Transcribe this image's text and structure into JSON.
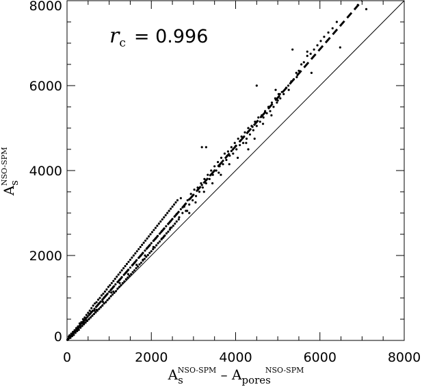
{
  "chart_data": {
    "type": "scatter",
    "title": "",
    "xlim": [
      0,
      8000
    ],
    "ylim": [
      0,
      8000
    ],
    "x_ticks": [
      0,
      2000,
      4000,
      6000,
      8000
    ],
    "y_ticks": [
      0,
      2000,
      4000,
      6000,
      8000
    ],
    "xlabel": {
      "parts": [
        {
          "text": "A",
          "style": "normal"
        },
        {
          "text": "s",
          "style": "sub"
        },
        {
          "text": "NSO-SPM",
          "style": "sup"
        },
        {
          "text": " – ",
          "style": "normal"
        },
        {
          "text": "A",
          "style": "normal"
        },
        {
          "text": "pores",
          "style": "sub"
        },
        {
          "text": "NSO-SPM",
          "style": "sup"
        }
      ]
    },
    "ylabel": {
      "parts": [
        {
          "text": "A",
          "style": "normal"
        },
        {
          "text": "s",
          "style": "sub"
        },
        {
          "text": "NSO-SPM",
          "style": "sup"
        }
      ]
    },
    "annotation": {
      "symbol": "r",
      "subscript": "c",
      "text": "= 0.996"
    },
    "reference_line": {
      "style": "solid",
      "x": [
        0,
        8000
      ],
      "y": [
        0,
        8000
      ]
    },
    "fit_line": {
      "style": "dashed",
      "x": [
        0,
        7000
      ],
      "y": [
        0,
        8000
      ]
    },
    "points": [
      [
        20,
        30
      ],
      [
        35,
        45
      ],
      [
        50,
        60
      ],
      [
        70,
        85
      ],
      [
        90,
        105
      ],
      [
        110,
        130
      ],
      [
        130,
        150
      ],
      [
        150,
        175
      ],
      [
        170,
        200
      ],
      [
        190,
        220
      ],
      [
        210,
        245
      ],
      [
        230,
        270
      ],
      [
        250,
        290
      ],
      [
        270,
        310
      ],
      [
        300,
        345
      ],
      [
        320,
        370
      ],
      [
        350,
        405
      ],
      [
        380,
        440
      ],
      [
        400,
        460
      ],
      [
        430,
        495
      ],
      [
        460,
        530
      ],
      [
        490,
        560
      ],
      [
        520,
        600
      ],
      [
        550,
        630
      ],
      [
        580,
        670
      ],
      [
        610,
        700
      ],
      [
        650,
        745
      ],
      [
        690,
        790
      ],
      [
        720,
        825
      ],
      [
        760,
        870
      ],
      [
        800,
        915
      ],
      [
        840,
        960
      ],
      [
        880,
        1010
      ],
      [
        920,
        1055
      ],
      [
        960,
        1100
      ],
      [
        1000,
        1145
      ],
      [
        1050,
        1200
      ],
      [
        1100,
        1260
      ],
      [
        1150,
        1320
      ],
      [
        1200,
        1375
      ],
      [
        1250,
        1430
      ],
      [
        1300,
        1490
      ],
      [
        1350,
        1545
      ],
      [
        1400,
        1600
      ],
      [
        1450,
        1660
      ],
      [
        1500,
        1715
      ],
      [
        1550,
        1775
      ],
      [
        1600,
        1830
      ],
      [
        1650,
        1890
      ],
      [
        1700,
        1945
      ],
      [
        1750,
        2000
      ],
      [
        1800,
        2060
      ],
      [
        1850,
        2115
      ],
      [
        1900,
        2175
      ],
      [
        1950,
        2230
      ],
      [
        2000,
        2290
      ],
      [
        2050,
        2345
      ],
      [
        2100,
        2400
      ],
      [
        2150,
        2460
      ],
      [
        2200,
        2515
      ],
      [
        2250,
        2575
      ],
      [
        2300,
        2630
      ],
      [
        2350,
        2690
      ],
      [
        2400,
        2745
      ],
      [
        2450,
        2800
      ],
      [
        2500,
        2860
      ],
      [
        2550,
        2915
      ],
      [
        2600,
        2975
      ],
      [
        2700,
        3090
      ],
      [
        2800,
        3200
      ],
      [
        2900,
        3320
      ],
      [
        3000,
        3430
      ],
      [
        3100,
        3545
      ],
      [
        3200,
        3660
      ],
      [
        3300,
        3775
      ],
      [
        3400,
        3890
      ],
      [
        3500,
        4000
      ],
      [
        3600,
        4120
      ],
      [
        3700,
        4230
      ],
      [
        3800,
        4350
      ],
      [
        3900,
        4460
      ],
      [
        4000,
        4575
      ],
      [
        4100,
        4690
      ],
      [
        4200,
        4800
      ],
      [
        4300,
        4920
      ],
      [
        4400,
        5030
      ],
      [
        4500,
        5150
      ],
      [
        4600,
        5260
      ],
      [
        4700,
        5375
      ],
      [
        4800,
        5490
      ],
      [
        40,
        90
      ],
      [
        60,
        120
      ],
      [
        80,
        60
      ],
      [
        100,
        160
      ],
      [
        120,
        100
      ],
      [
        140,
        200
      ],
      [
        160,
        130
      ],
      [
        180,
        240
      ],
      [
        200,
        180
      ],
      [
        220,
        290
      ],
      [
        240,
        220
      ],
      [
        260,
        330
      ],
      [
        280,
        250
      ],
      [
        300,
        400
      ],
      [
        320,
        300
      ],
      [
        340,
        430
      ],
      [
        360,
        340
      ],
      [
        380,
        500
      ],
      [
        400,
        380
      ],
      [
        420,
        540
      ],
      [
        440,
        420
      ],
      [
        460,
        600
      ],
      [
        480,
        460
      ],
      [
        500,
        650
      ],
      [
        520,
        500
      ],
      [
        540,
        700
      ],
      [
        560,
        540
      ],
      [
        580,
        760
      ],
      [
        600,
        580
      ],
      [
        620,
        820
      ],
      [
        640,
        620
      ],
      [
        660,
        870
      ],
      [
        680,
        660
      ],
      [
        700,
        900
      ],
      [
        720,
        700
      ],
      [
        740,
        960
      ],
      [
        760,
        740
      ],
      [
        780,
        1000
      ],
      [
        800,
        780
      ],
      [
        820,
        1060
      ],
      [
        840,
        820
      ],
      [
        860,
        1100
      ],
      [
        880,
        870
      ],
      [
        900,
        1150
      ],
      [
        920,
        900
      ],
      [
        940,
        1200
      ],
      [
        960,
        950
      ],
      [
        980,
        1260
      ],
      [
        1000,
        990
      ],
      [
        1020,
        1300
      ],
      [
        1040,
        1040
      ],
      [
        1060,
        1350
      ],
      [
        1080,
        1080
      ],
      [
        1100,
        1400
      ],
      [
        1120,
        1120
      ],
      [
        1140,
        1450
      ],
      [
        1160,
        1160
      ],
      [
        1180,
        1500
      ],
      [
        1200,
        1220
      ],
      [
        1220,
        1550
      ],
      [
        1240,
        1260
      ],
      [
        1260,
        1600
      ],
      [
        1280,
        1300
      ],
      [
        1300,
        1650
      ],
      [
        1320,
        1350
      ],
      [
        1340,
        1700
      ],
      [
        1360,
        1390
      ],
      [
        1380,
        1750
      ],
      [
        1400,
        1440
      ],
      [
        1420,
        1800
      ],
      [
        1440,
        1480
      ],
      [
        1460,
        1850
      ],
      [
        1480,
        1520
      ],
      [
        1500,
        1900
      ],
      [
        1520,
        1560
      ],
      [
        1540,
        1950
      ],
      [
        1560,
        1610
      ],
      [
        1580,
        2000
      ],
      [
        1600,
        1650
      ],
      [
        1620,
        2050
      ],
      [
        1640,
        1700
      ],
      [
        1660,
        2100
      ],
      [
        1680,
        1740
      ],
      [
        1700,
        2150
      ],
      [
        1720,
        1790
      ],
      [
        1740,
        2200
      ],
      [
        1760,
        1830
      ],
      [
        1780,
        2250
      ],
      [
        1800,
        1880
      ],
      [
        1820,
        2300
      ],
      [
        1840,
        1920
      ],
      [
        1860,
        2350
      ],
      [
        1880,
        1970
      ],
      [
        1900,
        2400
      ],
      [
        1920,
        2010
      ],
      [
        1940,
        2450
      ],
      [
        1960,
        2060
      ],
      [
        1980,
        2500
      ],
      [
        2000,
        2100
      ],
      [
        2020,
        2550
      ],
      [
        2040,
        2150
      ],
      [
        2060,
        2600
      ],
      [
        2080,
        2190
      ],
      [
        2100,
        2650
      ],
      [
        2120,
        2240
      ],
      [
        2140,
        2700
      ],
      [
        2160,
        2290
      ],
      [
        2180,
        2750
      ],
      [
        2200,
        2330
      ],
      [
        2220,
        2800
      ],
      [
        2240,
        2380
      ],
      [
        2260,
        2850
      ],
      [
        2280,
        2420
      ],
      [
        2300,
        2900
      ],
      [
        2320,
        2470
      ],
      [
        2340,
        2950
      ],
      [
        2360,
        2520
      ],
      [
        2380,
        3000
      ],
      [
        2400,
        2560
      ],
      [
        2420,
        3050
      ],
      [
        2440,
        2610
      ],
      [
        2460,
        3100
      ],
      [
        2480,
        2660
      ],
      [
        2500,
        3150
      ],
      [
        2520,
        2700
      ],
      [
        2540,
        3200
      ],
      [
        2560,
        2750
      ],
      [
        2580,
        3250
      ],
      [
        2600,
        2800
      ],
      [
        2620,
        3300
      ],
      [
        2660,
        2900
      ],
      [
        2700,
        3350
      ],
      [
        2740,
        3000
      ],
      [
        2780,
        3150
      ],
      [
        2820,
        3050
      ],
      [
        2860,
        3300
      ],
      [
        2900,
        3200
      ],
      [
        2940,
        3450
      ],
      [
        2980,
        3300
      ],
      [
        3020,
        3550
      ],
      [
        3060,
        3400
      ],
      [
        3100,
        3600
      ],
      [
        3140,
        3500
      ],
      [
        3180,
        3700
      ],
      [
        3220,
        3600
      ],
      [
        3260,
        3800
      ],
      [
        3300,
        3700
      ],
      [
        3340,
        3900
      ],
      [
        3380,
        3800
      ],
      [
        3420,
        4000
      ],
      [
        3460,
        3900
      ],
      [
        3500,
        4100
      ],
      [
        3540,
        4000
      ],
      [
        3580,
        4200
      ],
      [
        3620,
        4100
      ],
      [
        3660,
        4300
      ],
      [
        3700,
        4150
      ],
      [
        3740,
        4400
      ],
      [
        3780,
        4250
      ],
      [
        3820,
        4450
      ],
      [
        3860,
        4350
      ],
      [
        3900,
        4550
      ],
      [
        3940,
        4400
      ],
      [
        3980,
        4650
      ],
      [
        4020,
        4500
      ],
      [
        4060,
        4750
      ],
      [
        4100,
        4600
      ],
      [
        4140,
        4800
      ],
      [
        4180,
        4650
      ],
      [
        4220,
        4900
      ],
      [
        4260,
        4750
      ],
      [
        4300,
        5000
      ],
      [
        4340,
        4850
      ],
      [
        4380,
        5050
      ],
      [
        4420,
        4950
      ],
      [
        4460,
        5150
      ],
      [
        4500,
        5050
      ],
      [
        4540,
        5250
      ],
      [
        4580,
        5150
      ],
      [
        4620,
        5300
      ],
      [
        4660,
        5250
      ],
      [
        4700,
        5400
      ],
      [
        4740,
        5350
      ],
      [
        4780,
        5500
      ],
      [
        4820,
        5400
      ],
      [
        4860,
        5600
      ],
      [
        4900,
        5500
      ],
      [
        4940,
        5700
      ],
      [
        4980,
        5600
      ],
      [
        5020,
        5800
      ],
      [
        5060,
        5700
      ],
      [
        5100,
        5850
      ],
      [
        5140,
        5800
      ],
      [
        5200,
        5950
      ],
      [
        5260,
        5900
      ],
      [
        5320,
        6100
      ],
      [
        5380,
        6150
      ],
      [
        5440,
        6300
      ],
      [
        5500,
        6350
      ],
      [
        5560,
        6500
      ],
      [
        5620,
        6550
      ],
      [
        5700,
        6700
      ],
      [
        5780,
        6750
      ],
      [
        5860,
        6850
      ],
      [
        5940,
        6950
      ],
      [
        6020,
        7050
      ],
      [
        6100,
        7150
      ],
      [
        6200,
        7250
      ],
      [
        6300,
        7350
      ],
      [
        6400,
        7500
      ],
      [
        3200,
        4550
      ],
      [
        3300,
        4550
      ],
      [
        4500,
        6000
      ],
      [
        4950,
        5900
      ],
      [
        5050,
        5800
      ],
      [
        5350,
        6850
      ],
      [
        5700,
        6800
      ],
      [
        5800,
        6300
      ],
      [
        6480,
        6900
      ],
      [
        6900,
        7900
      ],
      [
        7100,
        7800
      ],
      [
        5000,
        5650
      ],
      [
        4300,
        4500
      ],
      [
        3600,
        3950
      ],
      [
        2900,
        3000
      ],
      [
        2300,
        2450
      ],
      [
        1800,
        1900
      ],
      [
        1100,
        1150
      ],
      [
        700,
        720
      ],
      [
        400,
        410
      ],
      [
        5450,
        6200
      ],
      [
        5250,
        6000
      ],
      [
        4850,
        5300
      ],
      [
        4650,
        5100
      ],
      [
        4450,
        4750
      ],
      [
        4250,
        4650
      ],
      [
        4050,
        4300
      ],
      [
        3850,
        4150
      ],
      [
        3650,
        3900
      ],
      [
        3450,
        3700
      ],
      [
        3250,
        3500
      ],
      [
        3050,
        3250
      ],
      [
        2850,
        3050
      ],
      [
        2650,
        2850
      ],
      [
        2450,
        2650
      ],
      [
        2250,
        2400
      ],
      [
        2050,
        2200
      ],
      [
        1850,
        2000
      ],
      [
        1650,
        1780
      ],
      [
        1450,
        1560
      ],
      [
        1250,
        1350
      ],
      [
        1050,
        1130
      ],
      [
        850,
        910
      ],
      [
        650,
        700
      ],
      [
        450,
        480
      ],
      [
        250,
        270
      ],
      [
        150,
        165
      ],
      [
        75,
        80
      ],
      [
        30,
        35
      ],
      [
        10,
        12
      ]
    ]
  }
}
